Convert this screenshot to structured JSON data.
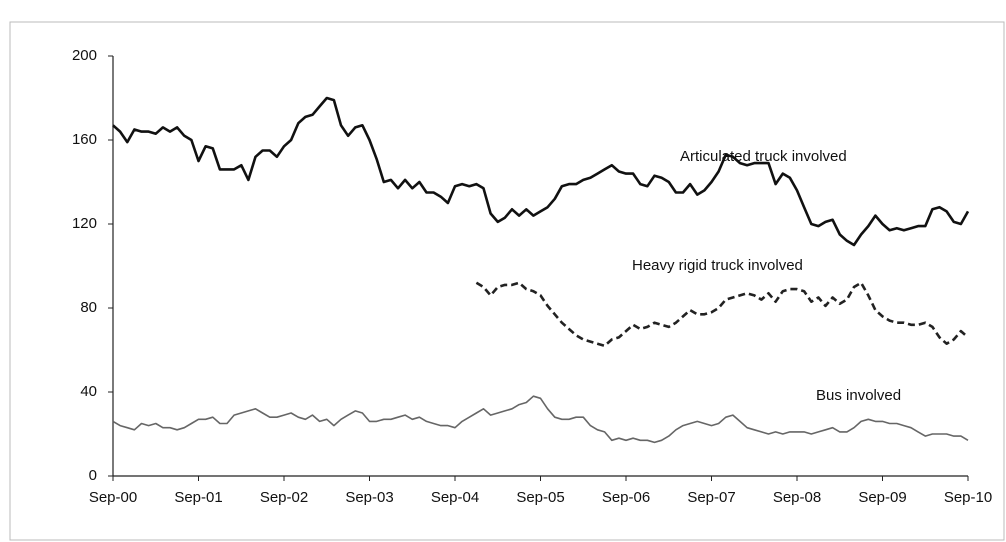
{
  "chart_data": {
    "type": "line",
    "categories": [
      "Sep-00",
      null,
      null,
      null,
      null,
      null,
      null,
      null,
      null,
      null,
      null,
      null,
      "Sep-01",
      null,
      null,
      null,
      null,
      null,
      null,
      null,
      null,
      null,
      null,
      null,
      "Sep-02",
      null,
      null,
      null,
      null,
      null,
      null,
      null,
      null,
      null,
      null,
      null,
      "Sep-03",
      null,
      null,
      null,
      null,
      null,
      null,
      null,
      null,
      null,
      null,
      null,
      "Sep-04",
      null,
      null,
      null,
      null,
      null,
      null,
      null,
      null,
      null,
      null,
      null,
      "Sep-05",
      null,
      null,
      null,
      null,
      null,
      null,
      null,
      null,
      null,
      null,
      null,
      "Sep-06",
      null,
      null,
      null,
      null,
      null,
      null,
      null,
      null,
      null,
      null,
      null,
      "Sep-07",
      null,
      null,
      null,
      null,
      null,
      null,
      null,
      null,
      null,
      null,
      null,
      "Sep-08",
      null,
      null,
      null,
      null,
      null,
      null,
      null,
      null,
      null,
      null,
      null,
      "Sep-09",
      null,
      null,
      null,
      null,
      null,
      null,
      null,
      null,
      null,
      null,
      null,
      "Sep-10"
    ],
    "series": [
      {
        "name": "Articulated truck involved",
        "color": "#111111",
        "width": 2.6,
        "dash": false,
        "values": [
          167,
          164,
          159,
          165,
          164,
          164,
          163,
          166,
          164,
          166,
          162,
          160,
          150,
          157,
          156,
          146,
          146,
          146,
          148,
          141,
          152,
          155,
          155,
          152,
          157,
          160,
          168,
          171,
          172,
          176,
          180,
          179,
          167,
          162,
          166,
          167,
          160,
          151,
          140,
          141,
          137,
          141,
          137,
          140,
          135,
          135,
          133,
          130,
          138,
          139,
          138,
          139,
          137,
          125,
          121,
          123,
          127,
          124,
          127,
          124,
          126,
          128,
          132,
          138,
          139,
          139,
          141,
          142,
          144,
          146,
          148,
          145,
          144,
          144,
          139,
          138,
          143,
          142,
          140,
          135,
          135,
          139,
          134,
          136,
          140,
          145,
          153,
          152,
          149,
          148,
          149,
          149,
          149,
          139,
          144,
          142,
          136,
          128,
          120,
          119,
          121,
          122,
          115,
          112,
          110,
          115,
          119,
          124,
          120,
          117,
          118,
          117,
          118,
          119,
          119,
          127,
          128,
          126,
          121,
          120,
          126
        ]
      },
      {
        "name": "Heavy rigid truck involved",
        "color": "#222222",
        "width": 2.6,
        "dash": true,
        "values": [
          null,
          null,
          null,
          null,
          null,
          null,
          null,
          null,
          null,
          null,
          null,
          null,
          null,
          null,
          null,
          null,
          null,
          null,
          null,
          null,
          null,
          null,
          null,
          null,
          null,
          null,
          null,
          null,
          null,
          null,
          null,
          null,
          null,
          null,
          null,
          null,
          null,
          null,
          null,
          null,
          null,
          null,
          null,
          null,
          null,
          null,
          null,
          null,
          null,
          null,
          null,
          92,
          90,
          86,
          90,
          91,
          91,
          92,
          89,
          88,
          86,
          81,
          77,
          73,
          70,
          67,
          65,
          64,
          63,
          62,
          65,
          66,
          69,
          72,
          70,
          71,
          73,
          72,
          71,
          73,
          76,
          79,
          77,
          77,
          78,
          80,
          84,
          85,
          86,
          87,
          86,
          84,
          87,
          83,
          88,
          89,
          89,
          88,
          83,
          85,
          81,
          85,
          82,
          84,
          90,
          92,
          86,
          79,
          76,
          74,
          73,
          73,
          72,
          72,
          73,
          71,
          66,
          63,
          65,
          69,
          66
        ]
      },
      {
        "name": "Bus involved",
        "color": "#666666",
        "width": 1.6,
        "dash": false,
        "values": [
          26,
          24,
          23,
          22,
          25,
          24,
          25,
          23,
          23,
          22,
          23,
          25,
          27,
          27,
          28,
          25,
          25,
          29,
          30,
          31,
          32,
          30,
          28,
          28,
          29,
          30,
          28,
          27,
          29,
          26,
          27,
          24,
          27,
          29,
          31,
          30,
          26,
          26,
          27,
          27,
          28,
          29,
          27,
          28,
          26,
          25,
          24,
          24,
          23,
          26,
          28,
          30,
          32,
          29,
          30,
          31,
          32,
          34,
          35,
          38,
          37,
          32,
          28,
          27,
          27,
          28,
          28,
          24,
          22,
          21,
          17,
          18,
          17,
          18,
          17,
          17,
          16,
          17,
          19,
          22,
          24,
          25,
          26,
          25,
          24,
          25,
          28,
          29,
          26,
          23,
          22,
          21,
          20,
          21,
          20,
          21,
          21,
          21,
          20,
          21,
          22,
          23,
          21,
          21,
          23,
          26,
          27,
          26,
          26,
          25,
          25,
          24,
          23,
          21,
          19,
          20,
          20,
          20,
          19,
          19,
          17
        ]
      }
    ],
    "ylim": [
      0,
      200
    ],
    "yticks": [
      0,
      40,
      80,
      120,
      160,
      200
    ],
    "grid": false
  }
}
